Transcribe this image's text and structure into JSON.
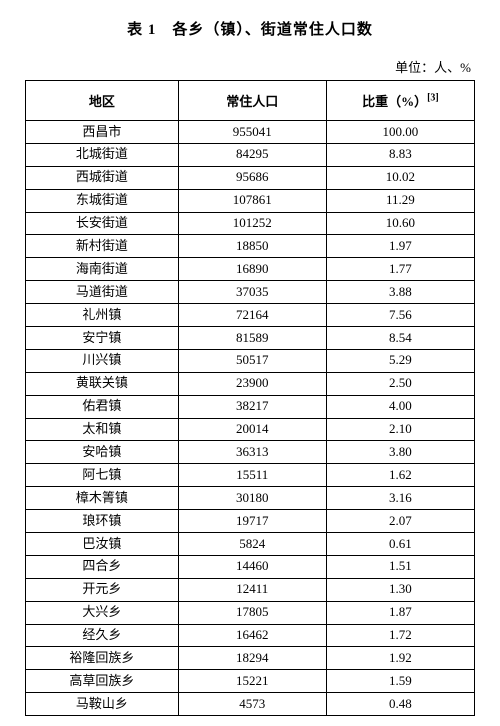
{
  "title": "表 1　各乡（镇）、街道常住人口数",
  "unit": "单位：人、%",
  "columns": [
    "地区",
    "常住人口",
    "比重（%）"
  ],
  "footnote_marker": "[3]",
  "rows": [
    [
      "西昌市",
      "955041",
      "100.00"
    ],
    [
      "北城街道",
      "84295",
      "8.83"
    ],
    [
      "西城街道",
      "95686",
      "10.02"
    ],
    [
      "东城街道",
      "107861",
      "11.29"
    ],
    [
      "长安街道",
      "101252",
      "10.60"
    ],
    [
      "新村街道",
      "18850",
      "1.97"
    ],
    [
      "海南街道",
      "16890",
      "1.77"
    ],
    [
      "马道街道",
      "37035",
      "3.88"
    ],
    [
      "礼州镇",
      "72164",
      "7.56"
    ],
    [
      "安宁镇",
      "81589",
      "8.54"
    ],
    [
      "川兴镇",
      "50517",
      "5.29"
    ],
    [
      "黄联关镇",
      "23900",
      "2.50"
    ],
    [
      "佑君镇",
      "38217",
      "4.00"
    ],
    [
      "太和镇",
      "20014",
      "2.10"
    ],
    [
      "安哈镇",
      "36313",
      "3.80"
    ],
    [
      "阿七镇",
      "15511",
      "1.62"
    ],
    [
      "樟木箐镇",
      "30180",
      "3.16"
    ],
    [
      "琅环镇",
      "19717",
      "2.07"
    ],
    [
      "巴汝镇",
      "5824",
      "0.61"
    ],
    [
      "四合乡",
      "14460",
      "1.51"
    ],
    [
      "开元乡",
      "12411",
      "1.30"
    ],
    [
      "大兴乡",
      "17805",
      "1.87"
    ],
    [
      "经久乡",
      "16462",
      "1.72"
    ],
    [
      "裕隆回族乡",
      "18294",
      "1.92"
    ],
    [
      "高草回族乡",
      "15221",
      "1.59"
    ],
    [
      "马鞍山乡",
      "4573",
      "0.48"
    ]
  ]
}
